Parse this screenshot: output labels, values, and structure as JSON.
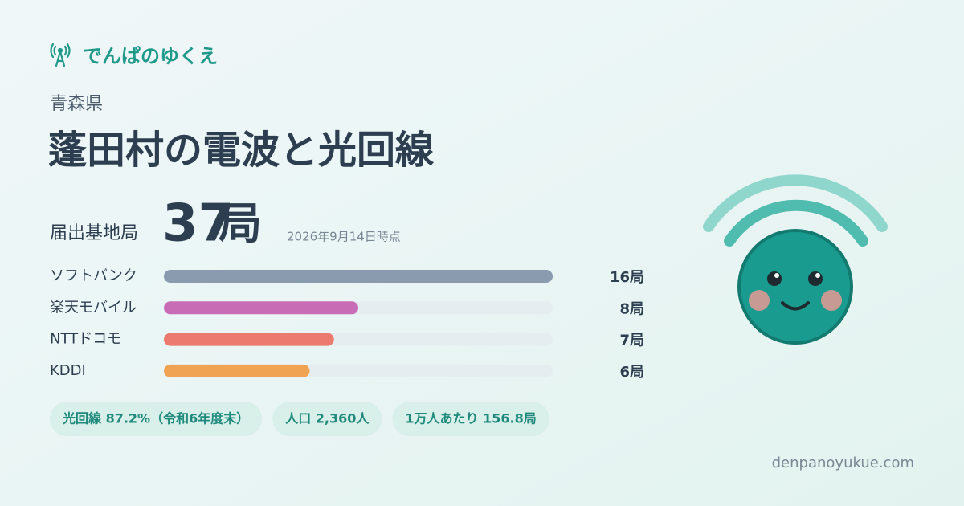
{
  "brand": "でんぱのゆくえ",
  "prefecture": "青森県",
  "title": "蓬田村の電波と光回線",
  "total": {
    "label": "届出基地局",
    "count": "37",
    "unit": "局",
    "as_of": "2026年9月14日時点"
  },
  "carriers": [
    {
      "name": "ソフトバンク",
      "value": 16,
      "value_label": "16局",
      "color": "#8a9bb0"
    },
    {
      "name": "楽天モバイル",
      "value": 8,
      "value_label": "8局",
      "color": "#c86db5"
    },
    {
      "name": "NTTドコモ",
      "value": 7,
      "value_label": "7局",
      "color": "#ec7a6e"
    },
    {
      "name": "KDDI",
      "value": 6,
      "value_label": "6局",
      "color": "#f0a453"
    }
  ],
  "stats": [
    "光回線 87.2%（令和6年度末）",
    "人口 2,360人",
    "1万人あたり 156.8局"
  ],
  "footer": "denpanoyukue.com"
}
